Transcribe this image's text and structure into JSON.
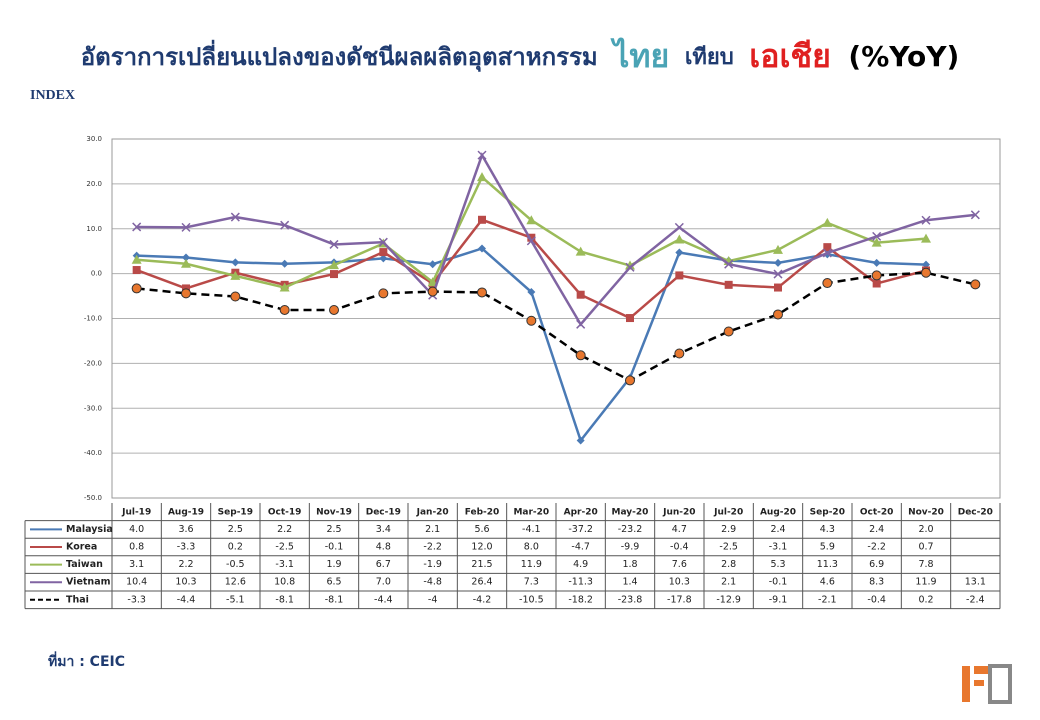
{
  "chart_data": {
    "type": "line",
    "title_parts": [
      "อัตราการเปลี่ยนแปลงของดัชนีผลผลิตอุตสาหกรรม",
      "ไทย",
      "เทียบ",
      "เอเชีย",
      "(%YoY)"
    ],
    "y_label": "INDEX",
    "source": "ที่มา : CEIC",
    "categories": [
      "Jul-19",
      "Aug-19",
      "Sep-19",
      "Oct-19",
      "Nov-19",
      "Dec-19",
      "Jan-20",
      "Feb-20",
      "Mar-20",
      "Apr-20",
      "May-20",
      "Jun-20",
      "Jul-20",
      "Aug-20",
      "Sep-20",
      "Oct-20",
      "Nov-20",
      "Dec-20"
    ],
    "ylim": [
      -50,
      30
    ],
    "yticks": [
      {
        "value": 30,
        "label": "30.0"
      },
      {
        "value": 20,
        "label": "20.0"
      },
      {
        "value": 10,
        "label": "10.0"
      },
      {
        "value": 0,
        "label": "0.0"
      },
      {
        "value": -10,
        "label": "-10.0"
      },
      {
        "value": -20,
        "label": "-20.0"
      },
      {
        "value": -30,
        "label": "-30.0"
      },
      {
        "value": -40,
        "label": "-40.0"
      },
      {
        "value": -50,
        "label": "-50.0"
      }
    ],
    "grid": true,
    "series": [
      {
        "name": "Malaysia",
        "color": "#4a7ab5",
        "marker": "diamond",
        "values": [
          4.0,
          3.6,
          2.5,
          2.2,
          2.5,
          3.4,
          2.1,
          5.6,
          -4.1,
          -37.2,
          -23.2,
          4.7,
          2.9,
          2.4,
          4.3,
          2.4,
          2.0,
          null
        ],
        "value_labels": [
          "4.0",
          "3.6",
          "2.5",
          "2.2",
          "2.5",
          "3.4",
          "2.1",
          "5.6",
          "-4.1",
          "-37.2",
          "-23.2",
          "4.7",
          "2.9",
          "2.4",
          "4.3",
          "2.4",
          "2.0",
          null
        ]
      },
      {
        "name": "Korea",
        "color": "#b94a48",
        "marker": "square",
        "values": [
          0.8,
          -3.3,
          0.2,
          -2.5,
          -0.1,
          4.8,
          -2.2,
          12.0,
          8.0,
          -4.7,
          -9.9,
          -0.4,
          -2.5,
          -3.1,
          5.9,
          -2.2,
          0.7,
          null
        ],
        "value_labels": [
          "0.8",
          "-3.3",
          "0.2",
          "-2.5",
          "-0.1",
          "4.8",
          "-2.2",
          "12.0",
          "8.0",
          "-4.7",
          "-9.9",
          "-0.4",
          "-2.5",
          "-3.1",
          "5.9",
          "-2.2",
          "0.7",
          null
        ]
      },
      {
        "name": "Taiwan",
        "color": "#9bbb59",
        "marker": "triangle",
        "values": [
          3.1,
          2.2,
          -0.5,
          -3.1,
          1.9,
          6.7,
          -1.9,
          21.5,
          11.9,
          4.9,
          1.8,
          7.6,
          2.8,
          5.3,
          11.3,
          6.9,
          7.8,
          null
        ],
        "value_labels": [
          "3.1",
          "2.2",
          "-0.5",
          "-3.1",
          "1.9",
          "6.7",
          "-1.9",
          "21.5",
          "11.9",
          "4.9",
          "1.8",
          "7.6",
          "2.8",
          "5.3",
          "11.3",
          "6.9",
          "7.8",
          null
        ]
      },
      {
        "name": "Vietnam",
        "color": "#8064a2",
        "marker": "x",
        "values": [
          10.4,
          10.3,
          12.6,
          10.8,
          6.5,
          7.0,
          -4.8,
          26.4,
          7.3,
          -11.3,
          1.4,
          10.3,
          2.1,
          -0.1,
          4.6,
          8.3,
          11.9,
          13.1
        ],
        "value_labels": [
          "10.4",
          "10.3",
          "12.6",
          "10.8",
          "6.5",
          "7.0",
          "-4.8",
          "26.4",
          "7.3",
          "-11.3",
          "1.4",
          "10.3",
          "2.1",
          "-0.1",
          "4.6",
          "8.3",
          "11.9",
          "13.1"
        ]
      },
      {
        "name": "Thai",
        "color": "#000000",
        "marker": "circle",
        "dashed": true,
        "values": [
          -3.3,
          -4.4,
          -5.1,
          -8.1,
          -8.1,
          -4.4,
          -4,
          -4.2,
          -10.5,
          -18.2,
          -23.8,
          -17.8,
          -12.9,
          -9.1,
          -2.1,
          -0.4,
          0.2,
          -2.4
        ],
        "value_labels": [
          "-3.3",
          "-4.4",
          "-5.1",
          "-8.1",
          "-8.1",
          "-4.4",
          "-4",
          "-4.2",
          "-10.5",
          "-18.2",
          "-23.8",
          "-17.8",
          "-12.9",
          "-9.1",
          "-2.1",
          "-0.4",
          "0.2",
          "-2.4"
        ]
      }
    ]
  }
}
